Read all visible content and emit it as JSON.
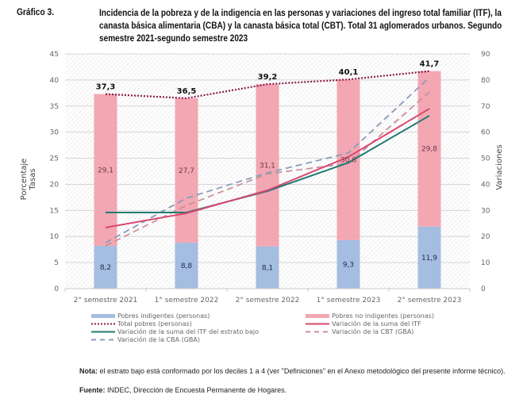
{
  "figure": {
    "label": "Gráfico 3.",
    "title": "Incidencia de la pobreza y de la indigencia en las personas y variaciones del ingreso total familiar (ITF), la canasta básica alimentaria (CBA) y la canasta básica total (CBT). Total 31 aglomerados urbanos. Segundo semestre 2021-segundo semestre 2023"
  },
  "chart_data": {
    "type": "bar",
    "title": "Incidencia de la pobreza y de la indigencia en las personas y variaciones del ingreso total familiar (ITF), la canasta básica alimentaria (CBA) y la canasta básica total (CBT). Total 31 aglomerados urbanos. Segundo semestre 2021-segundo semestre 2023",
    "categories": [
      "2° semestre 2021",
      "1° semestre 2022",
      "2° semestre 2022",
      "1° semestre 2023",
      "2° semestre 2023"
    ],
    "ylabel_left": [
      "Porcentaje",
      "Tasas"
    ],
    "ylabel_right": "Variaciones",
    "ylim_left": [
      0,
      45
    ],
    "yticks_left": [
      "0",
      "5",
      "10",
      "15",
      "20",
      "25",
      "30",
      "35",
      "40",
      "45"
    ],
    "ylim_right": [
      0,
      90
    ],
    "yticks_right": [
      "0",
      "10",
      "20",
      "30",
      "40",
      "50",
      "60",
      "70",
      "80",
      "90"
    ],
    "grid": true,
    "legend_position": "bottom",
    "bar_series": [
      {
        "name": "Pobres indigentes (personas)",
        "color": "#a4bde0",
        "axis": "left",
        "values": [
          8.2,
          8.8,
          8.1,
          9.3,
          11.9
        ],
        "labels": [
          "8,2",
          "8,8",
          "8,1",
          "9,3",
          "11,9"
        ]
      },
      {
        "name": "Pobres no indigentes (personas)",
        "color": "#f2a7b2",
        "axis": "left",
        "values": [
          29.1,
          27.7,
          31.1,
          30.8,
          29.8
        ],
        "labels": [
          "29,1",
          "27,7",
          "31,1",
          "30,8",
          "29,8"
        ]
      }
    ],
    "line_series": [
      {
        "name": "Total pobres (personas)",
        "color": "#8b1a4a",
        "style": "dotted",
        "axis": "left",
        "values": [
          37.3,
          36.5,
          39.2,
          40.1,
          41.7
        ],
        "labels": [
          "37,3",
          "36,5",
          "39,2",
          "40,1",
          "41,7"
        ]
      },
      {
        "name": "Variación de la suma del ITF",
        "color": "#d9476e",
        "style": "solid",
        "axis": "right",
        "values": [
          23.4,
          28.9,
          37.7,
          50.5,
          69.0
        ]
      },
      {
        "name": "Variación de la suma del ITF del estrato bajo",
        "color": "#1f7a72",
        "style": "solid",
        "axis": "right",
        "values": [
          29.2,
          29.2,
          37.4,
          48.3,
          66.3
        ]
      },
      {
        "name": "Variación de la CBT (GBA)",
        "color": "#c9909a",
        "style": "dashed",
        "axis": "right",
        "values": [
          16.4,
          31.9,
          44.0,
          48.0,
          75.4
        ]
      },
      {
        "name": "Variación de la CBA (GBA)",
        "color": "#8a9bb8",
        "style": "dashed",
        "axis": "right",
        "values": [
          17.6,
          34.7,
          44.4,
          52.0,
          81.0
        ]
      }
    ],
    "legend": [
      {
        "name": "Pobres indigentes (personas)",
        "marker": "bar",
        "color": "#a4bde0"
      },
      {
        "name": "Pobres no indigentes (personas)",
        "marker": "bar",
        "color": "#f2a7b2"
      },
      {
        "name": "Total pobres (personas)",
        "marker": "dotted",
        "color": "#8b1a4a"
      },
      {
        "name": "Variación de la suma del ITF",
        "marker": "solid",
        "color": "#d9476e"
      },
      {
        "name": "Variación de la suma del ITF del estrato bajo",
        "marker": "solid",
        "color": "#1f7a72"
      },
      {
        "name": "Variación de la CBT (GBA)",
        "marker": "dashed",
        "color": "#c9909a"
      },
      {
        "name": "Variación de la CBA (GBA)",
        "marker": "dashed",
        "color": "#8a9bb8"
      }
    ]
  },
  "notes": {
    "nota_label": "Nota:",
    "nota_text": " el estrato bajo está conformado por los deciles 1 a 4 (ver \"Definiciones\" en el Anexo metodológico del presente informe técnico).",
    "fuente_label": "Fuente:",
    "fuente_text": " INDEC, Dirección de Encuesta Permanente de Hogares."
  }
}
